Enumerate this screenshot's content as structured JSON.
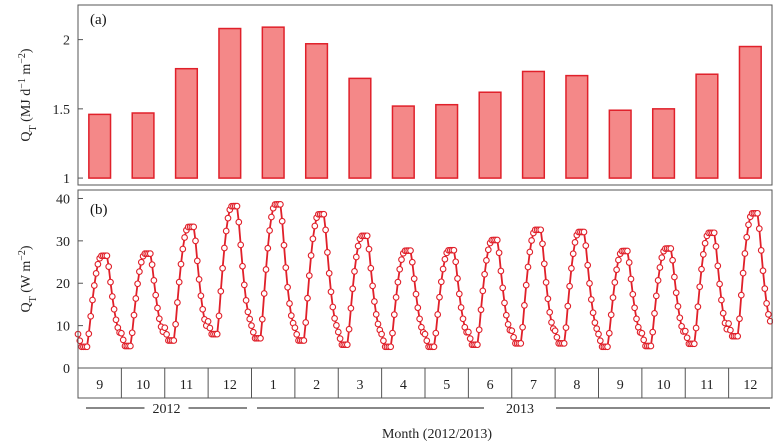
{
  "chart_data": [
    {
      "type": "bar",
      "panel_label": "(a)",
      "ylabel": "Q",
      "ylabel_sub": "T",
      "ylabel_units": "(MJ d",
      "ylabel_sup1": "−1",
      "ylabel_units2": " m",
      "ylabel_sup2": "−2",
      "ylabel_close": ")",
      "ylim": [
        0.95,
        2.25
      ],
      "yticks": [
        "1",
        "1.5",
        "2"
      ],
      "ytick_values": [
        1,
        1.5,
        2
      ],
      "categories": [
        "9",
        "10",
        "11",
        "12",
        "1",
        "2",
        "3",
        "4",
        "5",
        "6",
        "7",
        "8",
        "9",
        "10",
        "11",
        "12"
      ],
      "values": [
        1.46,
        1.47,
        1.79,
        2.08,
        2.09,
        1.97,
        1.72,
        1.52,
        1.53,
        1.62,
        1.77,
        1.74,
        1.49,
        1.5,
        1.75,
        1.95
      ],
      "grid": false
    },
    {
      "type": "line",
      "panel_label": "(b)",
      "ylabel": "Q",
      "ylabel_sub": "T",
      "ylabel_units": "(W m",
      "ylabel_sup": "−2",
      "ylabel_close": ")",
      "ylim": [
        0,
        42
      ],
      "yticks": [
        "0",
        "10",
        "20",
        "30",
        "40"
      ],
      "ytick_values": [
        0,
        10,
        20,
        30,
        40
      ],
      "xlabel": "Month (2012/2013)",
      "months": [
        "9",
        "10",
        "11",
        "12",
        "1",
        "2",
        "3",
        "4",
        "5",
        "6",
        "7",
        "8",
        "9",
        "10",
        "11",
        "12"
      ],
      "series": [
        {
          "month": "9",
          "min": 5,
          "max": 26.5
        },
        {
          "month": "10",
          "min": 5.2,
          "max": 27
        },
        {
          "month": "11",
          "min": 6.5,
          "max": 33.3
        },
        {
          "month": "12",
          "min": 8,
          "max": 38.2
        },
        {
          "month": "1",
          "min": 7,
          "max": 38.6
        },
        {
          "month": "2",
          "min": 6.5,
          "max": 36.3
        },
        {
          "month": "3",
          "min": 5.5,
          "max": 31.2
        },
        {
          "month": "4",
          "min": 5,
          "max": 27.7
        },
        {
          "month": "5",
          "min": 5,
          "max": 27.8
        },
        {
          "month": "6",
          "min": 5.5,
          "max": 30.2
        },
        {
          "month": "7",
          "min": 5.8,
          "max": 32.6
        },
        {
          "month": "8",
          "min": 5.8,
          "max": 32.1
        },
        {
          "month": "9",
          "min": 5,
          "max": 27.6
        },
        {
          "month": "10",
          "min": 5.2,
          "max": 28.2
        },
        {
          "month": "11",
          "min": 5.7,
          "max": 31.9
        },
        {
          "month": "12",
          "min": 7.5,
          "max": 36.5
        }
      ],
      "grid": false
    }
  ],
  "year_labels": [
    "2012",
    "2013"
  ]
}
